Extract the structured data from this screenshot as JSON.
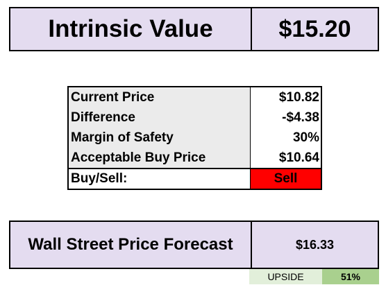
{
  "intrinsic": {
    "label": "Intrinsic Value",
    "value": "$15.20"
  },
  "metrics": {
    "rows": [
      {
        "label": "Current Price",
        "value": "$10.82"
      },
      {
        "label": "Difference",
        "value": "-$4.38"
      },
      {
        "label": "Margin of Safety",
        "value": "30%"
      },
      {
        "label": "Acceptable Buy Price",
        "value": "$10.64"
      }
    ],
    "buy_sell": {
      "label": "Buy/Sell:",
      "value": "Sell",
      "color": "#ff0000"
    }
  },
  "forecast": {
    "label": "Wall Street Price Forecast",
    "value": "$16.33"
  },
  "upside": {
    "label": "UPSIDE",
    "value": "51%"
  },
  "colors": {
    "header_fill": "#e4dcf0",
    "label_fill": "#ebebeb",
    "upside_label_fill": "#e2efda",
    "upside_value_fill": "#a9d08e"
  }
}
